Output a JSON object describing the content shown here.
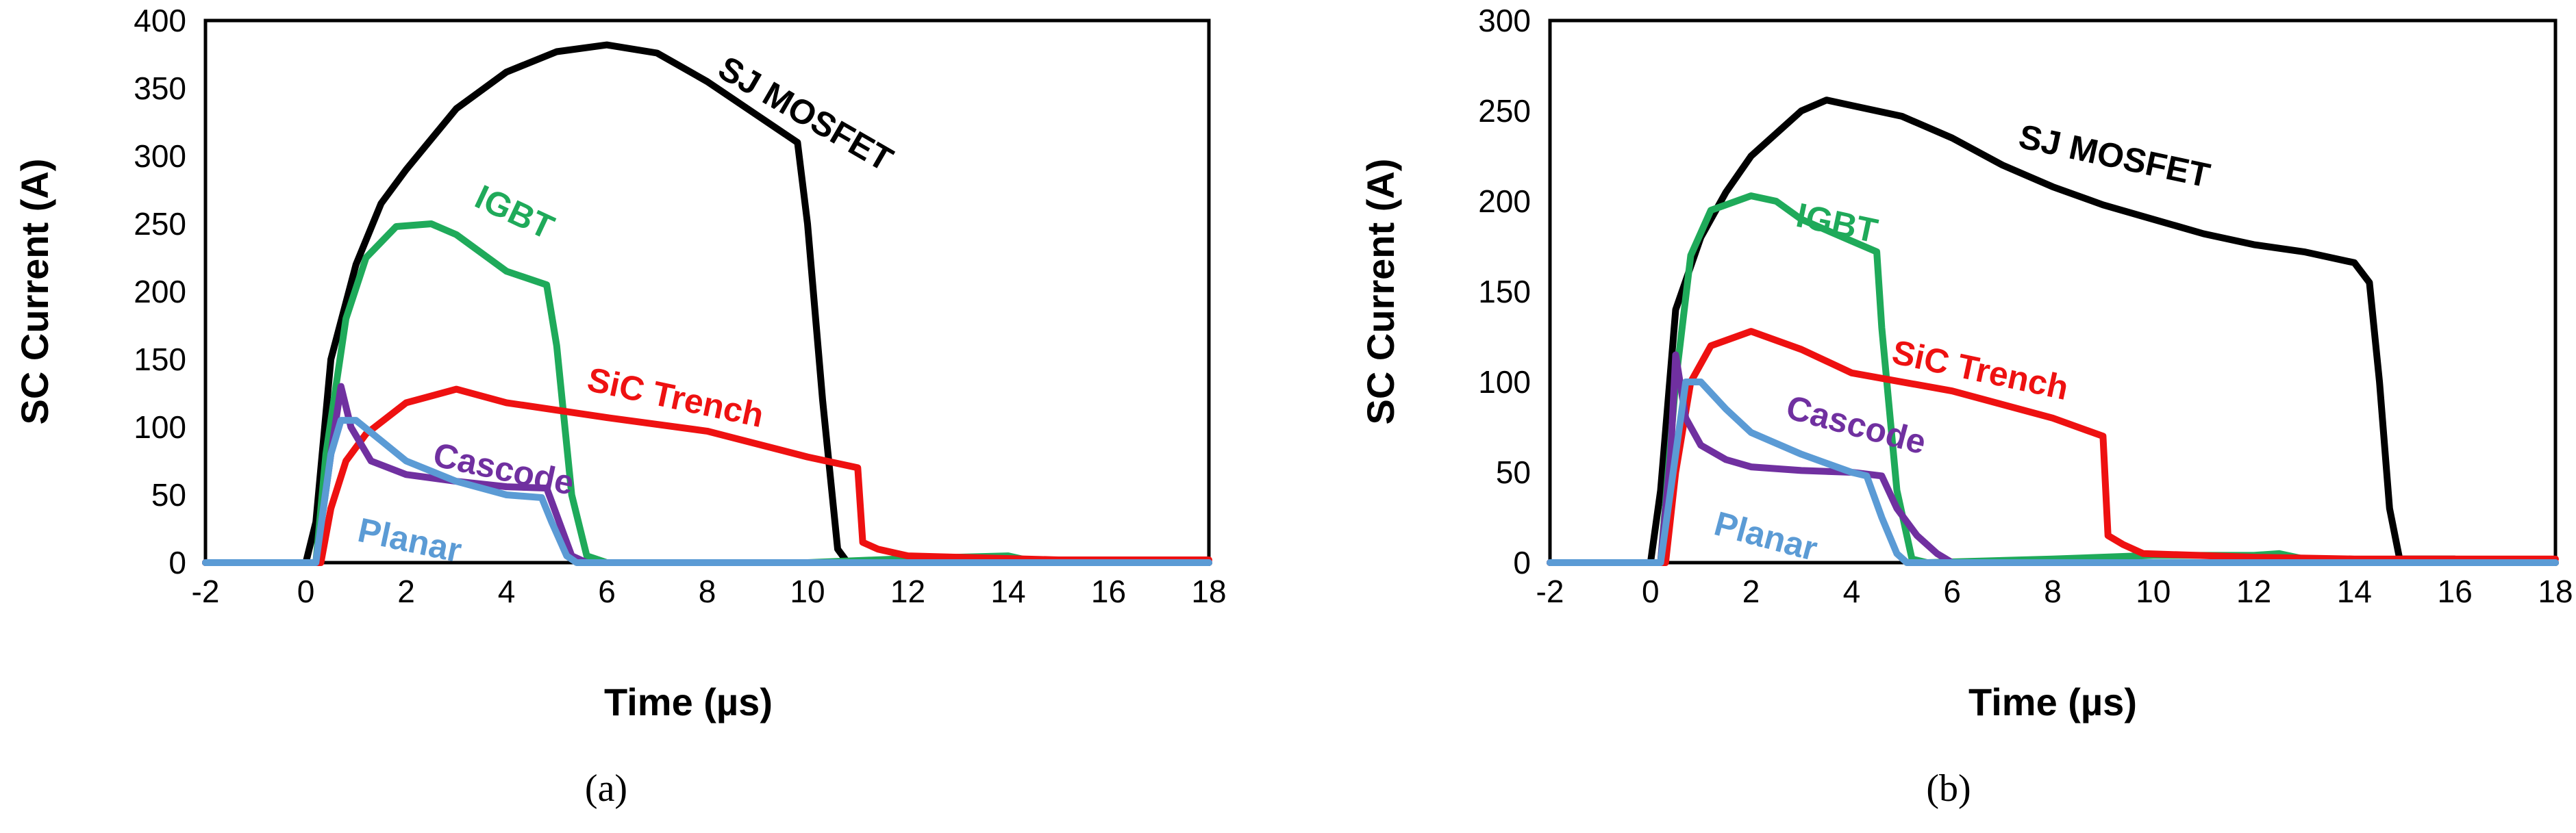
{
  "chart_data": [
    {
      "type": "line",
      "panel_label": "(a)",
      "xlabel": "Time (µs)",
      "ylabel": "SC Current (A)",
      "xlim": [
        -2,
        18
      ],
      "ylim": [
        0,
        400
      ],
      "xticks": [
        -2,
        0,
        2,
        4,
        6,
        8,
        10,
        12,
        14,
        16,
        18
      ],
      "yticks": [
        0,
        50,
        100,
        150,
        200,
        250,
        300,
        350,
        400
      ],
      "grid": false,
      "legend": "none",
      "series": [
        {
          "name": "SJ MOSFET",
          "color": "#000000",
          "points": [
            [
              -2,
              0
            ],
            [
              0,
              0
            ],
            [
              0.2,
              30
            ],
            [
              0.5,
              150
            ],
            [
              1,
              220
            ],
            [
              1.5,
              265
            ],
            [
              2,
              290
            ],
            [
              3,
              335
            ],
            [
              4,
              362
            ],
            [
              5,
              377
            ],
            [
              6,
              382
            ],
            [
              7,
              376
            ],
            [
              8,
              355
            ],
            [
              9,
              330
            ],
            [
              9.8,
              310
            ],
            [
              10,
              250
            ],
            [
              10.3,
              120
            ],
            [
              10.6,
              10
            ],
            [
              10.8,
              0
            ],
            [
              18,
              0
            ]
          ]
        },
        {
          "name": "IGBT",
          "color": "#1faa5a",
          "points": [
            [
              -2,
              0
            ],
            [
              0.2,
              0
            ],
            [
              0.4,
              80
            ],
            [
              0.8,
              180
            ],
            [
              1.2,
              225
            ],
            [
              1.8,
              248
            ],
            [
              2.5,
              250
            ],
            [
              3,
              242
            ],
            [
              4,
              215
            ],
            [
              4.8,
              205
            ],
            [
              5,
              160
            ],
            [
              5.3,
              50
            ],
            [
              5.6,
              5
            ],
            [
              6,
              0
            ],
            [
              10,
              0
            ],
            [
              12,
              3
            ],
            [
              14,
              5
            ],
            [
              14.6,
              0
            ],
            [
              18,
              0
            ]
          ]
        },
        {
          "name": "SiC Trench",
          "color": "#ee1111",
          "points": [
            [
              -2,
              0
            ],
            [
              0.3,
              0
            ],
            [
              0.5,
              40
            ],
            [
              0.8,
              75
            ],
            [
              1.2,
              95
            ],
            [
              2,
              118
            ],
            [
              3,
              128
            ],
            [
              4,
              118
            ],
            [
              6,
              107
            ],
            [
              8,
              97
            ],
            [
              10,
              78
            ],
            [
              11,
              70
            ],
            [
              11.1,
              15
            ],
            [
              11.4,
              10
            ],
            [
              12,
              5
            ],
            [
              13,
              4
            ],
            [
              15,
              2
            ],
            [
              18,
              2
            ]
          ]
        },
        {
          "name": "Cascode",
          "color": "#7030a0",
          "points": [
            [
              -2,
              0
            ],
            [
              0.2,
              0
            ],
            [
              0.5,
              80
            ],
            [
              0.7,
              130
            ],
            [
              0.9,
              100
            ],
            [
              1.3,
              75
            ],
            [
              2,
              65
            ],
            [
              3,
              60
            ],
            [
              4,
              56
            ],
            [
              4.8,
              55
            ],
            [
              5,
              35
            ],
            [
              5.3,
              5
            ],
            [
              5.6,
              0
            ],
            [
              18,
              0
            ]
          ]
        },
        {
          "name": "Planar",
          "color": "#5b9bd5",
          "points": [
            [
              -2,
              0
            ],
            [
              0.2,
              0
            ],
            [
              0.5,
              80
            ],
            [
              0.7,
              105
            ],
            [
              1,
              105
            ],
            [
              1.5,
              90
            ],
            [
              2,
              75
            ],
            [
              3,
              60
            ],
            [
              4,
              50
            ],
            [
              4.7,
              48
            ],
            [
              4.9,
              30
            ],
            [
              5.2,
              5
            ],
            [
              5.4,
              0
            ],
            [
              18,
              0
            ]
          ]
        }
      ]
    },
    {
      "type": "line",
      "panel_label": "(b)",
      "xlabel": "Time (µs)",
      "ylabel": "SC Current (A)",
      "xlim": [
        -2,
        18
      ],
      "ylim": [
        0,
        300
      ],
      "xticks": [
        -2,
        0,
        2,
        4,
        6,
        8,
        10,
        12,
        14,
        16,
        18
      ],
      "yticks": [
        0,
        50,
        100,
        150,
        200,
        250,
        300
      ],
      "grid": false,
      "legend": "none",
      "series": [
        {
          "name": "SJ MOSFET",
          "color": "#000000",
          "points": [
            [
              -2,
              0
            ],
            [
              0,
              0
            ],
            [
              0.2,
              40
            ],
            [
              0.5,
              140
            ],
            [
              1,
              180
            ],
            [
              1.5,
              205
            ],
            [
              2,
              225
            ],
            [
              3,
              250
            ],
            [
              3.5,
              256
            ],
            [
              4,
              253
            ],
            [
              5,
              247
            ],
            [
              6,
              235
            ],
            [
              7,
              220
            ],
            [
              8,
              208
            ],
            [
              9,
              198
            ],
            [
              10,
              190
            ],
            [
              11,
              182
            ],
            [
              12,
              176
            ],
            [
              13,
              172
            ],
            [
              14,
              166
            ],
            [
              14.3,
              155
            ],
            [
              14.5,
              100
            ],
            [
              14.7,
              30
            ],
            [
              14.9,
              2
            ],
            [
              16,
              2
            ],
            [
              16,
              0
            ],
            [
              18,
              0
            ]
          ]
        },
        {
          "name": "IGBT",
          "color": "#1faa5a",
          "points": [
            [
              -2,
              0
            ],
            [
              0.2,
              0
            ],
            [
              0.5,
              100
            ],
            [
              0.8,
              170
            ],
            [
              1.2,
              195
            ],
            [
              2,
              203
            ],
            [
              2.5,
              200
            ],
            [
              3,
              190
            ],
            [
              4,
              178
            ],
            [
              4.5,
              172
            ],
            [
              4.6,
              130
            ],
            [
              4.9,
              40
            ],
            [
              5.2,
              2
            ],
            [
              5.5,
              0
            ],
            [
              8,
              2
            ],
            [
              10,
              4
            ],
            [
              12,
              4
            ],
            [
              12.5,
              5
            ],
            [
              13,
              2
            ],
            [
              18,
              0
            ]
          ]
        },
        {
          "name": "SiC Trench",
          "color": "#ee1111",
          "points": [
            [
              -2,
              0
            ],
            [
              0.3,
              0
            ],
            [
              0.5,
              50
            ],
            [
              0.8,
              100
            ],
            [
              1.2,
              120
            ],
            [
              2,
              128
            ],
            [
              3,
              118
            ],
            [
              4,
              105
            ],
            [
              6,
              95
            ],
            [
              8,
              80
            ],
            [
              9,
              70
            ],
            [
              9.1,
              15
            ],
            [
              9.4,
              10
            ],
            [
              9.8,
              5
            ],
            [
              12,
              3
            ],
            [
              14,
              2
            ],
            [
              18,
              2
            ]
          ]
        },
        {
          "name": "Cascode",
          "color": "#7030a0",
          "points": [
            [
              -2,
              0
            ],
            [
              0.2,
              0
            ],
            [
              0.4,
              60
            ],
            [
              0.5,
              115
            ],
            [
              0.7,
              80
            ],
            [
              1,
              65
            ],
            [
              1.5,
              57
            ],
            [
              2,
              53
            ],
            [
              3,
              51
            ],
            [
              4,
              50
            ],
            [
              4.6,
              48
            ],
            [
              4.9,
              30
            ],
            [
              5.3,
              15
            ],
            [
              5.7,
              5
            ],
            [
              6,
              0
            ],
            [
              18,
              0
            ]
          ]
        },
        {
          "name": "Planar",
          "color": "#5b9bd5",
          "points": [
            [
              -2,
              0
            ],
            [
              0.2,
              0
            ],
            [
              0.5,
              60
            ],
            [
              0.7,
              100
            ],
            [
              1,
              100
            ],
            [
              1.5,
              85
            ],
            [
              2,
              72
            ],
            [
              3,
              60
            ],
            [
              4,
              50
            ],
            [
              4.3,
              48
            ],
            [
              4.6,
              25
            ],
            [
              4.9,
              5
            ],
            [
              5.1,
              0
            ],
            [
              18,
              0
            ]
          ]
        }
      ]
    }
  ]
}
